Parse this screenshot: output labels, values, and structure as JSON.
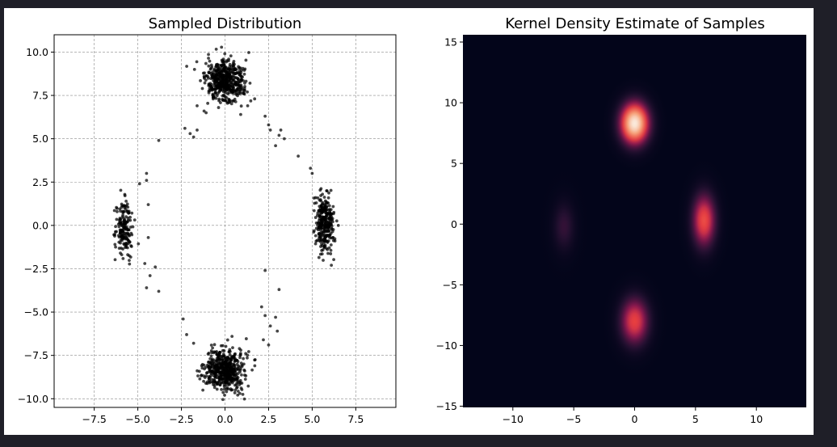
{
  "chart_data": [
    {
      "type": "scatter",
      "title": "Sampled Distribution",
      "xlabel": "",
      "ylabel": "",
      "xlim": [
        -9.8,
        9.8
      ],
      "ylim": [
        -10.5,
        11.0
      ],
      "xticks": [
        "−7.5",
        "−5.0",
        "−2.5",
        "0.0",
        "2.5",
        "5.0",
        "7.5"
      ],
      "xtick_values": [
        -7.5,
        -5.0,
        -2.5,
        0.0,
        2.5,
        5.0,
        7.5
      ],
      "yticks": [
        "10.0",
        "7.5",
        "5.0",
        "2.5",
        "0.0",
        "−2.5",
        "−5.0",
        "−7.5",
        "−10.0"
      ],
      "ytick_values": [
        10.0,
        7.5,
        5.0,
        2.5,
        0.0,
        -2.5,
        -5.0,
        -7.5,
        -10.0
      ],
      "grid": true,
      "point_color": "#000000",
      "clusters": [
        {
          "center": [
            0.0,
            8.3
          ],
          "std": [
            0.55,
            0.6
          ],
          "n": 520
        },
        {
          "center": [
            0.0,
            -8.3
          ],
          "std": [
            0.55,
            0.6
          ],
          "n": 520
        },
        {
          "center": [
            5.7,
            0.2
          ],
          "std": [
            0.25,
            0.85
          ],
          "n": 300
        },
        {
          "center": [
            -5.8,
            -0.2
          ],
          "std": [
            0.25,
            0.95
          ],
          "n": 170
        }
      ],
      "outliers": [
        [
          -3.8,
          4.9
        ],
        [
          -2.0,
          5.3
        ],
        [
          -1.6,
          5.5
        ],
        [
          -1.8,
          5.1
        ],
        [
          -2.3,
          5.6
        ],
        [
          2.6,
          5.5
        ],
        [
          3.2,
          5.5
        ],
        [
          3.4,
          5.0
        ],
        [
          2.9,
          4.6
        ],
        [
          2.3,
          6.3
        ],
        [
          4.2,
          4.0
        ],
        [
          4.9,
          3.3
        ],
        [
          5.0,
          3.0
        ],
        [
          3.1,
          5.2
        ],
        [
          2.5,
          5.8
        ],
        [
          -4.5,
          3.0
        ],
        [
          -4.9,
          2.4
        ],
        [
          -4.5,
          2.6
        ],
        [
          -4.4,
          1.2
        ],
        [
          -4.4,
          -0.7
        ],
        [
          -4.6,
          -2.2
        ],
        [
          -4.0,
          -2.4
        ],
        [
          -3.8,
          -3.8
        ],
        [
          -4.5,
          -3.6
        ],
        [
          -4.3,
          -2.9
        ],
        [
          -2.4,
          -5.4
        ],
        [
          -2.2,
          -6.3
        ],
        [
          -1.8,
          -6.8
        ],
        [
          2.3,
          -2.6
        ],
        [
          3.1,
          -3.7
        ],
        [
          2.1,
          -4.7
        ],
        [
          2.3,
          -5.2
        ],
        [
          2.9,
          -5.3
        ],
        [
          2.6,
          -5.8
        ],
        [
          3.0,
          -6.1
        ],
        [
          2.2,
          -6.6
        ],
        [
          2.5,
          -6.9
        ],
        [
          6.1,
          -2.3
        ],
        [
          6.5,
          -0.0
        ],
        [
          5.2,
          1.6
        ],
        [
          0.9,
          6.4
        ],
        [
          1.3,
          6.9
        ],
        [
          1.7,
          7.3
        ],
        [
          -1.6,
          6.9
        ],
        [
          -1.2,
          6.6
        ]
      ]
    },
    {
      "type": "heatmap",
      "title": "Kernel Density Estimate of Samples",
      "xlabel": "",
      "ylabel": "",
      "xlim": [
        -14.1,
        14.1
      ],
      "ylim": [
        -15.1,
        15.6
      ],
      "xticks": [
        "−10",
        "−5",
        "0",
        "5",
        "10"
      ],
      "xtick_values": [
        -10,
        -5,
        0,
        5,
        10
      ],
      "yticks": [
        "15",
        "10",
        "5",
        "0",
        "−5",
        "−10",
        "−15"
      ],
      "ytick_values": [
        15,
        10,
        5,
        0,
        -5,
        -10,
        -15
      ],
      "colormap": "rocket",
      "colormap_colors": [
        "#03051a",
        "#4c1d4b",
        "#a11a5b",
        "#e83f3f",
        "#f69c73",
        "#faebdd"
      ],
      "background_color": "#03051a",
      "blobs": [
        {
          "center": [
            0.0,
            8.3
          ],
          "sigma": [
            0.9,
            1.3
          ],
          "peak": 1.0
        },
        {
          "center": [
            0.0,
            -8.0
          ],
          "sigma": [
            0.9,
            1.5
          ],
          "peak": 0.6
        },
        {
          "center": [
            5.7,
            0.3
          ],
          "sigma": [
            0.75,
            1.7
          ],
          "peak": 0.63
        },
        {
          "center": [
            -5.8,
            -0.2
          ],
          "sigma": [
            0.7,
            1.6
          ],
          "peak": 0.24
        }
      ]
    }
  ]
}
